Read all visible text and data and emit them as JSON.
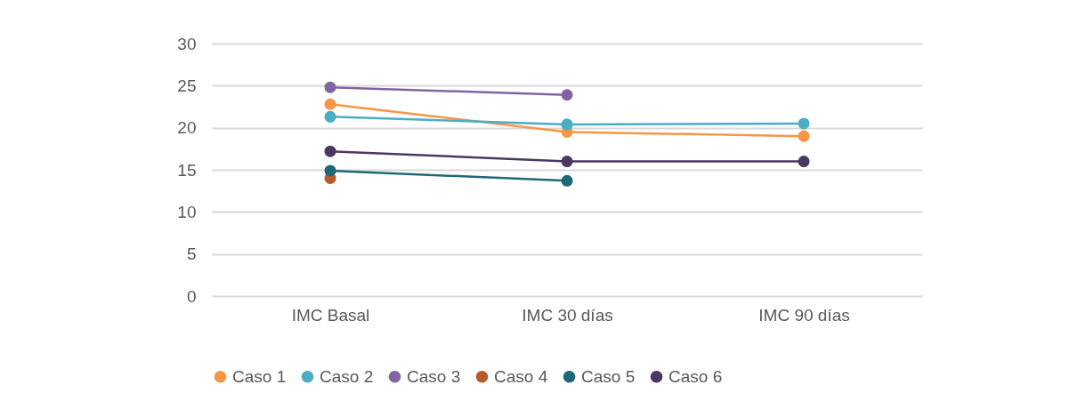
{
  "chart_data": {
    "type": "line",
    "categories": [
      "IMC Basal",
      "IMC 30 días",
      "IMC 90 días"
    ],
    "series": [
      {
        "name": "Caso 1",
        "color": "#f79646",
        "values": [
          22.8,
          19.5,
          19.0
        ]
      },
      {
        "name": "Caso 2",
        "color": "#4bacc6",
        "values": [
          21.3,
          20.4,
          20.5
        ]
      },
      {
        "name": "Caso 3",
        "color": "#8064a2",
        "values": [
          24.8,
          23.9,
          null
        ]
      },
      {
        "name": "Caso 4",
        "color": "#b65a2a",
        "values": [
          14.0,
          null,
          null
        ]
      },
      {
        "name": "Caso 5",
        "color": "#1f6878",
        "values": [
          14.9,
          13.7,
          null
        ]
      },
      {
        "name": "Caso 6",
        "color": "#4b3862",
        "values": [
          17.2,
          16.0,
          16.0
        ]
      }
    ],
    "ylim": [
      0,
      30
    ],
    "yticks": [
      0,
      5,
      10,
      15,
      20,
      25,
      30
    ],
    "grid": "y",
    "legend": "bottom",
    "marker": "circle",
    "line_style": "solid"
  }
}
